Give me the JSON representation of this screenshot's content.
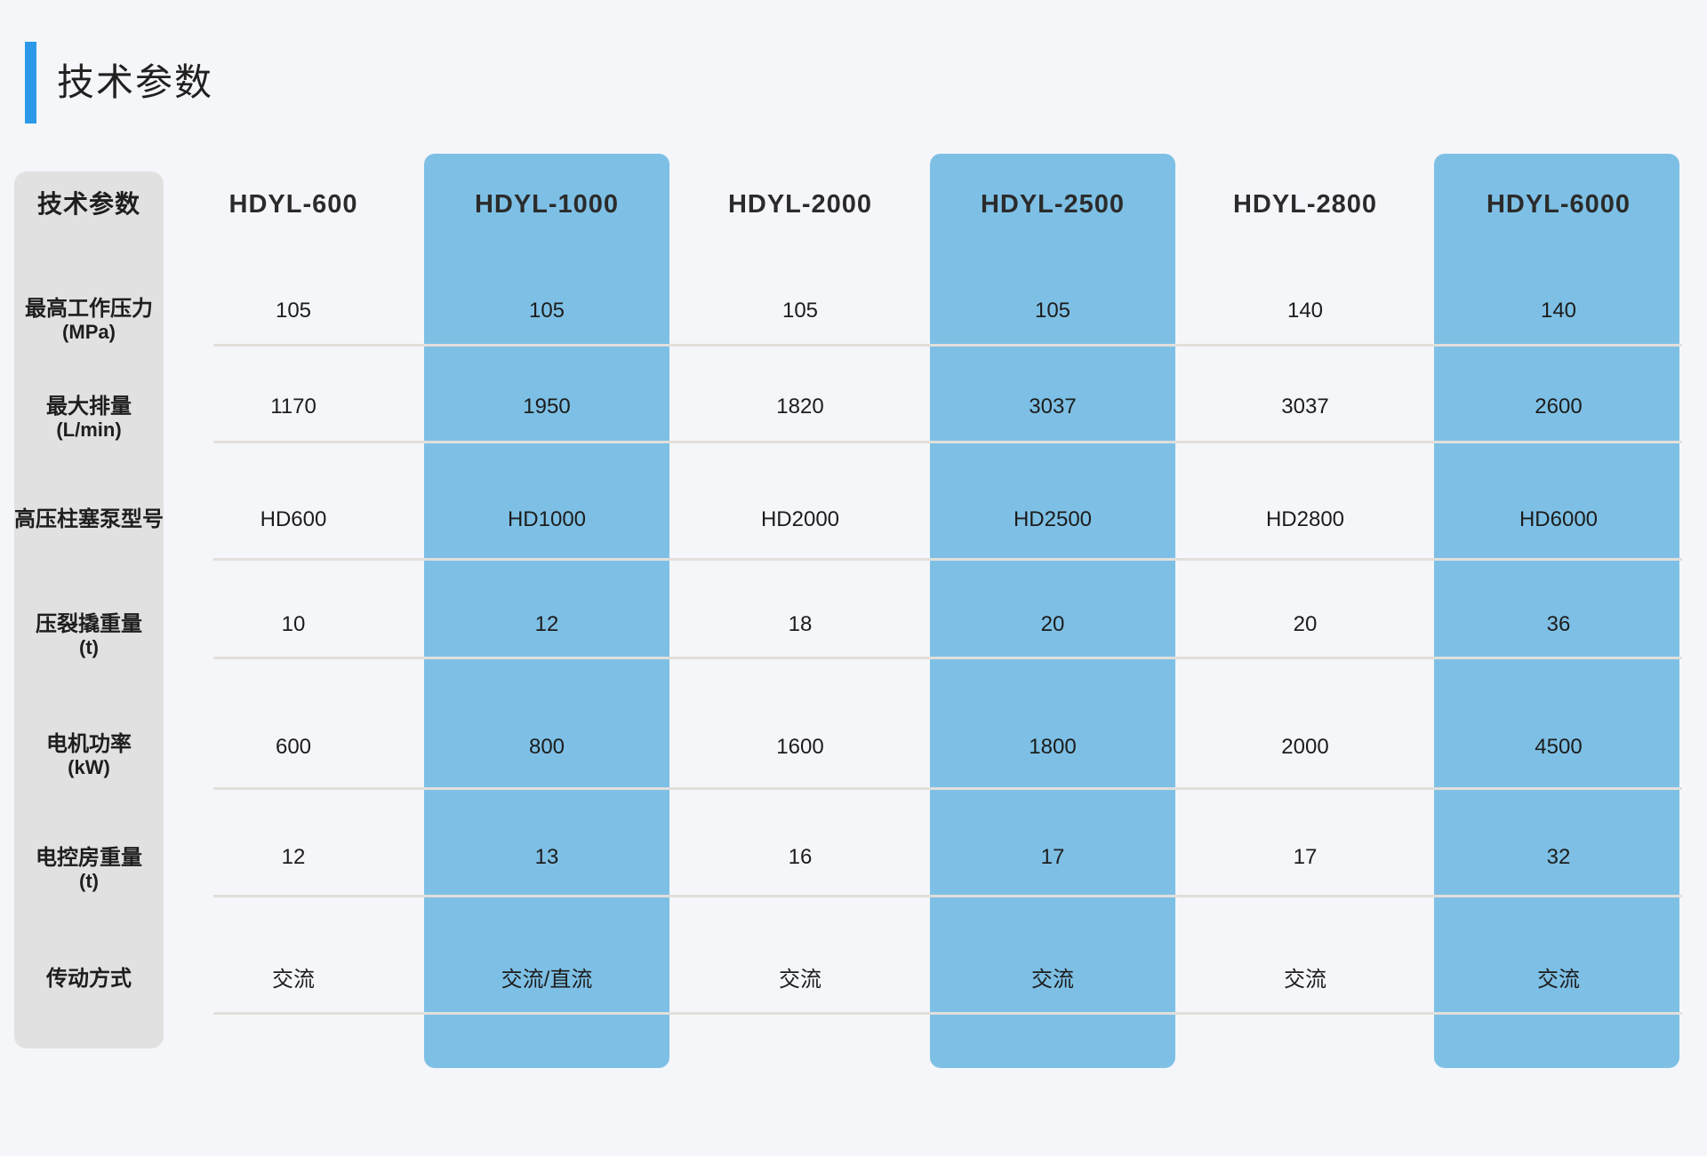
{
  "page_title": "技术参数",
  "colors": {
    "background": "#f5f6fa",
    "accent_blue": "#2b99e8",
    "highlight_column_blue": "#7ec0e5",
    "label_panel_gray": "#e1e1e1",
    "divider_gray": "#e2dfdb"
  },
  "table": {
    "corner_label": "技术参数",
    "columns": [
      {
        "label": "HDYL-600",
        "highlighted": false
      },
      {
        "label": "HDYL-1000",
        "highlighted": true
      },
      {
        "label": "HDYL-2000",
        "highlighted": false
      },
      {
        "label": "HDYL-2500",
        "highlighted": true
      },
      {
        "label": "HDYL-2800",
        "highlighted": false
      },
      {
        "label": "HDYL-6000",
        "highlighted": true
      }
    ],
    "rows": [
      {
        "label": "最高工作压力",
        "unit": "(MPa)",
        "values": [
          "105",
          "105",
          "105",
          "105",
          "140",
          "140"
        ]
      },
      {
        "label": "最大排量",
        "unit": "(L/min)",
        "values": [
          "1170",
          "1950",
          "1820",
          "3037",
          "3037",
          "2600"
        ]
      },
      {
        "label": "高压柱塞泵型号",
        "unit": "",
        "values": [
          "HD600",
          "HD1000",
          "HD2000",
          "HD2500",
          "HD2800",
          "HD6000"
        ]
      },
      {
        "label": "压裂撬重量",
        "unit": "(t)",
        "values": [
          "10",
          "12",
          "18",
          "20",
          "20",
          "36"
        ]
      },
      {
        "label": "电机功率",
        "unit": "(kW)",
        "values": [
          "600",
          "800",
          "1600",
          "1800",
          "2000",
          "4500"
        ]
      },
      {
        "label": "电控房重量",
        "unit": "(t)",
        "values": [
          "12",
          "13",
          "16",
          "17",
          "17",
          "32"
        ]
      },
      {
        "label": "传动方式",
        "unit": "",
        "values": [
          "交流",
          "交流/直流",
          "交流",
          "交流",
          "交流",
          "交流"
        ]
      }
    ]
  }
}
